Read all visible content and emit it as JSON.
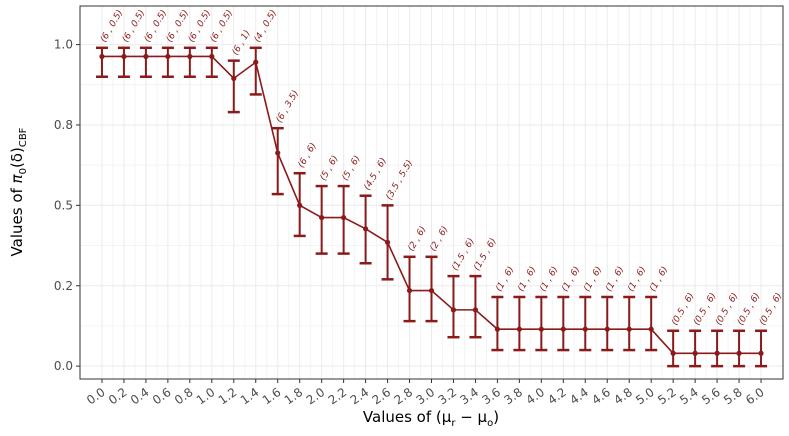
{
  "chart_data": {
    "type": "line",
    "title": "",
    "xlabel": "Values of (μ_r − μ_o)",
    "ylabel": "Values of π_0(δ)_CBF",
    "xlabel_parts": {
      "prefix": "Values of (",
      "mu1": "μ",
      "sub1": "r",
      "minus": " − ",
      "mu2": "μ",
      "sub2": "o",
      "suffix": ")"
    },
    "ylabel_parts": {
      "prefix": "Values of ",
      "pi": "π",
      "sub0": "0",
      "delta": "(δ)",
      "subcbf": "CBF"
    },
    "xlim": [
      -0.2,
      6.2
    ],
    "ylim": [
      -0.04,
      1.12
    ],
    "grid": true,
    "legend": "none",
    "color": "#8b1a1a",
    "x_tick_labels": [
      "0.0",
      "0.2",
      "0.4",
      "0.6",
      "0.8",
      "1.0",
      "1.2",
      "1.4",
      "1.6",
      "1.8",
      "2.0",
      "2.2",
      "2.4",
      "2.6",
      "2.8",
      "3.0",
      "3.2",
      "3.4",
      "3.6",
      "3.8",
      "4.0",
      "4.2",
      "4.4",
      "4.6",
      "4.8",
      "5.0",
      "5.2",
      "5.4",
      "5.6",
      "5.8",
      "6.0"
    ],
    "y_ticks": [
      0.0,
      0.25,
      0.5,
      0.75,
      1.0
    ],
    "y_tick_labels": [
      "0.0",
      "0.2",
      "0.5",
      "0.8",
      "1.0"
    ],
    "x": [
      0.0,
      0.2,
      0.4,
      0.6,
      0.8,
      1.0,
      1.2,
      1.4,
      1.6,
      1.8,
      2.0,
      2.2,
      2.4,
      2.6,
      2.8,
      3.0,
      3.2,
      3.4,
      3.6,
      3.8,
      4.0,
      4.2,
      4.4,
      4.6,
      4.8,
      5.0,
      5.2,
      5.4,
      5.6,
      5.8,
      6.0
    ],
    "y": [
      0.963,
      0.963,
      0.963,
      0.963,
      0.963,
      0.963,
      0.895,
      0.945,
      0.663,
      0.5,
      0.462,
      0.462,
      0.427,
      0.385,
      0.235,
      0.235,
      0.175,
      0.175,
      0.115,
      0.115,
      0.115,
      0.115,
      0.115,
      0.115,
      0.115,
      0.115,
      0.04,
      0.04,
      0.04,
      0.04,
      0.04
    ],
    "lower": [
      0.9,
      0.9,
      0.9,
      0.9,
      0.9,
      0.9,
      0.79,
      0.845,
      0.535,
      0.405,
      0.35,
      0.35,
      0.32,
      0.27,
      0.14,
      0.14,
      0.09,
      0.09,
      0.05,
      0.05,
      0.05,
      0.05,
      0.05,
      0.05,
      0.05,
      0.05,
      0.0,
      0.0,
      0.0,
      0.0,
      0.0
    ],
    "upper": [
      0.99,
      0.99,
      0.99,
      0.99,
      0.99,
      0.99,
      0.95,
      0.99,
      0.74,
      0.6,
      0.56,
      0.56,
      0.53,
      0.5,
      0.34,
      0.34,
      0.28,
      0.28,
      0.215,
      0.215,
      0.215,
      0.215,
      0.215,
      0.215,
      0.215,
      0.215,
      0.11,
      0.11,
      0.11,
      0.11,
      0.11
    ],
    "annotations": [
      "(6 , 0.5)",
      "(6 , 0.5)",
      "(6 , 0.5)",
      "(6 , 0.5)",
      "(6 , 0.5)",
      "(6 , 0.5)",
      "(6 , 1)",
      "(4 , 0.5)",
      "(6 , 3.5)",
      "(6 , 6)",
      "(5 , 6)",
      "(5 , 6)",
      "(4.5 , 6)",
      "(3.5 , 5.5)",
      "(2 , 6)",
      "(2 , 6)",
      "(1.5 , 6)",
      "(1.5 , 6)",
      "(1 , 6)",
      "(1 , 6)",
      "(1 , 6)",
      "(1 , 6)",
      "(1 , 6)",
      "(1 , 6)",
      "(1 , 6)",
      "(1 , 6)",
      "(0.5 , 6)",
      "(0.5 , 6)",
      "(0.5 , 6)",
      "(0.5 , 6)",
      "(0.5 , 6)"
    ]
  }
}
